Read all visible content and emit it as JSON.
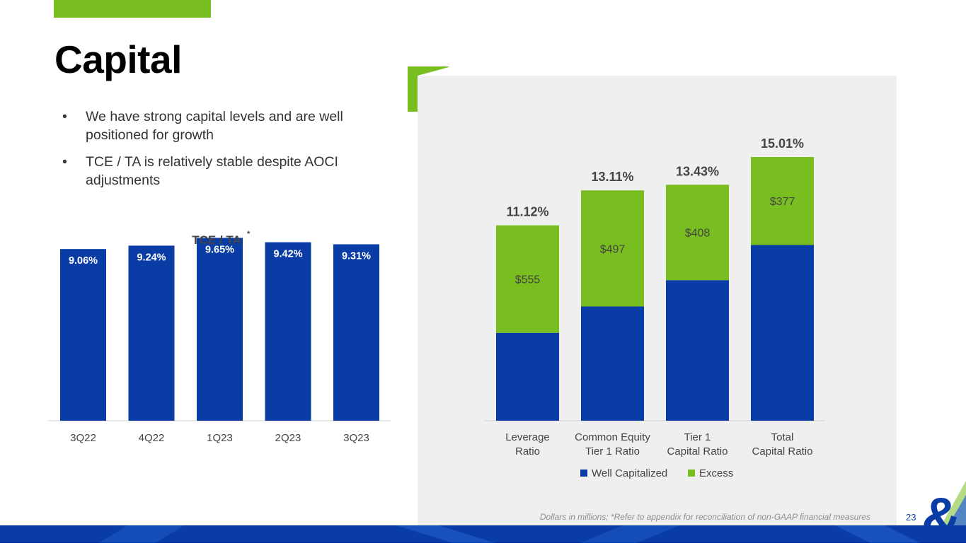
{
  "slide": {
    "title": "Capital",
    "page_number": "23"
  },
  "bullets": [
    "We have strong capital levels and are well positioned for growth",
    "TCE / TA is relatively stable despite AOCI adjustments"
  ],
  "footnote": "Dollars in millions; *Refer to appendix for reconciliation of non-GAAP financial measures",
  "colors": {
    "blue": "#0a3ca6",
    "green": "#78be20",
    "panel": "#efefef",
    "text": "#333333"
  },
  "chart_data": [
    {
      "type": "bar",
      "title": "TCE / TA",
      "title_marker": "*",
      "categories": [
        "3Q22",
        "4Q22",
        "1Q23",
        "2Q23",
        "3Q23"
      ],
      "values": [
        9.06,
        9.24,
        9.65,
        9.42,
        9.31
      ],
      "data_labels": [
        "9.06%",
        "9.24%",
        "9.65%",
        "9.42%",
        "9.31%"
      ],
      "xlabel": "",
      "ylabel": "",
      "ylim": [
        0,
        10
      ]
    },
    {
      "type": "bar",
      "stacked": true,
      "categories": [
        "Leverage Ratio",
        "Common Equity Tier 1 Ratio",
        "Tier 1 Capital Ratio",
        "Total Capital Ratio"
      ],
      "category_lines": [
        [
          "Leverage",
          "Ratio"
        ],
        [
          "Common Equity",
          "Tier 1 Ratio"
        ],
        [
          "Tier 1",
          "Capital Ratio"
        ],
        [
          "Total",
          "Capital Ratio"
        ]
      ],
      "totals": [
        11.12,
        13.11,
        13.43,
        15.01
      ],
      "total_labels": [
        "11.12%",
        "13.11%",
        "13.43%",
        "15.01%"
      ],
      "series": [
        {
          "name": "Well Capitalized",
          "values": [
            5.0,
            6.5,
            8.0,
            10.0
          ]
        },
        {
          "name": "Excess",
          "values": [
            6.12,
            6.61,
            5.43,
            5.01
          ],
          "labels": [
            "$555",
            "$497",
            "$408",
            "$377"
          ]
        }
      ],
      "legend": [
        "Well Capitalized",
        "Excess"
      ],
      "legend_position": "bottom",
      "ylim": [
        0,
        16
      ]
    }
  ]
}
